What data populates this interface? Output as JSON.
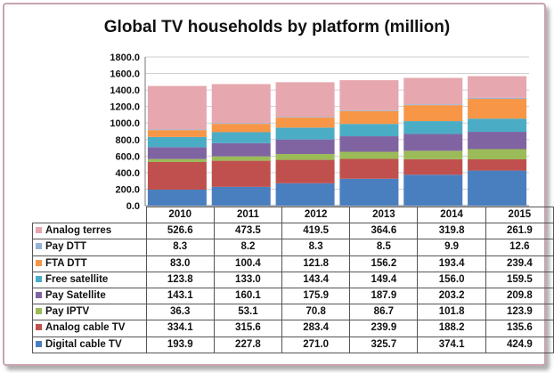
{
  "chart_data": {
    "type": "bar",
    "stacked": true,
    "title": "Global TV households by platform (million)",
    "categories": [
      "2010",
      "2011",
      "2012",
      "2013",
      "2014",
      "2015"
    ],
    "ylim": [
      0,
      1800
    ],
    "yticks": [
      "0.0",
      "200.0",
      "400.0",
      "600.0",
      "800.0",
      "1000.0",
      "1200.0",
      "1400.0",
      "1600.0",
      "1800.0"
    ],
    "grid": true,
    "series": [
      {
        "name": "Digital cable TV",
        "color": "#4a7fbf",
        "labels": [
          "193.9",
          "227.8",
          "271.0",
          "325.7",
          "374.1",
          "424.9"
        ],
        "values": [
          193.9,
          227.8,
          271.0,
          325.7,
          374.1,
          424.9
        ]
      },
      {
        "name": "Analog cable TV",
        "color": "#c0504d",
        "labels": [
          "334.1",
          "315.6",
          "283.4",
          "239.9",
          "188.2",
          "135.6"
        ],
        "values": [
          334.1,
          315.6,
          283.4,
          239.9,
          188.2,
          135.6
        ]
      },
      {
        "name": "Pay IPTV",
        "color": "#9bbb59",
        "labels": [
          "36.3",
          "53.1",
          "70.8",
          "86.7",
          "101.8",
          "123.9"
        ],
        "values": [
          36.3,
          53.1,
          70.8,
          86.7,
          101.8,
          123.9
        ]
      },
      {
        "name": "Pay Satellite",
        "color": "#8064a2",
        "labels": [
          "143.1",
          "160.1",
          "175.9",
          "187.9",
          "203.2",
          "209.8"
        ],
        "values": [
          143.1,
          160.1,
          175.9,
          187.9,
          203.2,
          209.8
        ]
      },
      {
        "name": "Free satellite",
        "color": "#4bacc6",
        "labels": [
          "123.8",
          "133.0",
          "143.4",
          "149.4",
          "156.0",
          "159.5"
        ],
        "values": [
          123.8,
          133.0,
          143.4,
          149.4,
          156.0,
          159.5
        ]
      },
      {
        "name": "FTA DTT",
        "color": "#f79646",
        "labels": [
          "83.0",
          "100.4",
          "121.8",
          "156.2",
          "193.4",
          "239.4"
        ],
        "values": [
          83.0,
          100.4,
          121.8,
          156.2,
          193.4,
          239.4
        ]
      },
      {
        "name": "Pay DTT",
        "color": "#95b3d7",
        "labels": [
          "8.3",
          "8.2",
          "8.3",
          "8.5",
          "9.9",
          "12.6"
        ],
        "values": [
          8.3,
          8.2,
          8.3,
          8.5,
          9.9,
          12.6
        ]
      },
      {
        "name": "Analog terres",
        "color": "#e6a7ae",
        "labels": [
          "526.6",
          "473.5",
          "419.5",
          "364.6",
          "319.8",
          "261.9"
        ],
        "values": [
          526.6,
          473.5,
          419.5,
          364.6,
          319.8,
          261.9
        ]
      }
    ]
  }
}
